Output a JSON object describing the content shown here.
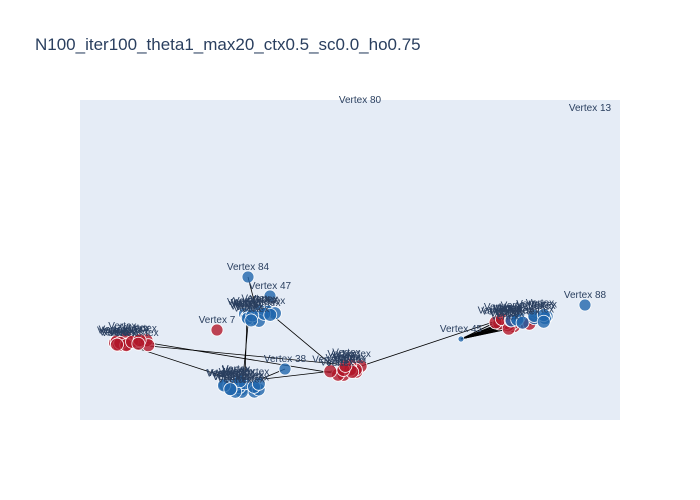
{
  "chart_data": {
    "type": "scatter",
    "title": "N100_iter100_theta1_max20_ctx0.5_sc0.0_ho0.75",
    "xlabel": "",
    "ylabel": "",
    "grid": false,
    "axes_visible": false,
    "xlim": [
      0,
      540
    ],
    "ylim": [
      0,
      320
    ],
    "colors": {
      "plot_bg": "#e5ecf6",
      "red": "#b2182b",
      "blue": "#2166ac",
      "edge": "#000000",
      "text": "#2a3f5f"
    },
    "labeled_vertices": [
      {
        "label": "Vertex 80",
        "x": 280,
        "y": 310,
        "group": "none"
      },
      {
        "label": "Vertex 13",
        "x": 510,
        "y": 302,
        "group": "none"
      },
      {
        "label": "Vertex 84",
        "x": 168,
        "y": 143,
        "group": "blue"
      },
      {
        "label": "Vertex 88",
        "x": 505,
        "y": 115,
        "group": "blue"
      },
      {
        "label": "Vertex 45",
        "x": 381,
        "y": 81,
        "group": "blue"
      },
      {
        "label": "Vertex 7",
        "x": 137,
        "y": 90,
        "group": "red"
      },
      {
        "label": "Vertex 38",
        "x": 205,
        "y": 51,
        "group": "blue"
      },
      {
        "label": "Vertex 47",
        "x": 190,
        "y": 124,
        "group": "blue"
      }
    ],
    "clusters": [
      {
        "name": "red-left",
        "group": "red",
        "cx": 50,
        "cy": 77,
        "n": 14
      },
      {
        "name": "blue-top",
        "group": "blue",
        "cx": 178,
        "cy": 104,
        "n": 16
      },
      {
        "name": "blue-bottom",
        "group": "blue",
        "cx": 162,
        "cy": 33,
        "n": 20
      },
      {
        "name": "red-middle",
        "group": "red",
        "cx": 268,
        "cy": 50,
        "n": 12
      },
      {
        "name": "red-right",
        "group": "red",
        "cx": 432,
        "cy": 96,
        "n": 12
      },
      {
        "name": "blue-right",
        "group": "blue",
        "cx": 450,
        "cy": 101,
        "n": 10
      }
    ],
    "annotation_text": "Vertex"
  }
}
